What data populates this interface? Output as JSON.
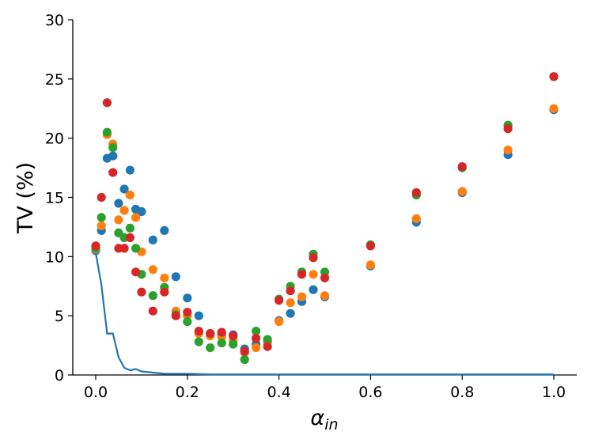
{
  "chart_data": {
    "type": "scatter",
    "title": "",
    "xlabel_main": "α",
    "xlabel_sub": "in",
    "ylabel": "TV (%)",
    "xlim": [
      -0.05,
      1.05
    ],
    "ylim": [
      0,
      30
    ],
    "xticks": [
      0.0,
      0.2,
      0.4,
      0.6,
      0.8,
      1.0
    ],
    "xtick_labels": [
      "0.0",
      "0.2",
      "0.4",
      "0.6",
      "0.8",
      "1.0"
    ],
    "yticks": [
      0,
      5,
      10,
      15,
      20,
      25,
      30
    ],
    "ytick_labels": [
      "0",
      "5",
      "10",
      "15",
      "20",
      "25",
      "30"
    ],
    "grid": false,
    "legend": "none",
    "x": [
      0.0,
      0.0125,
      0.025,
      0.0375,
      0.05,
      0.0625,
      0.075,
      0.0875,
      0.1,
      0.125,
      0.15,
      0.175,
      0.2,
      0.225,
      0.25,
      0.275,
      0.3,
      0.325,
      0.35,
      0.375,
      0.4,
      0.425,
      0.45,
      0.475,
      0.5,
      0.6,
      0.7,
      0.8,
      0.9,
      1.0
    ],
    "series": [
      {
        "color": "#1f77b4",
        "kind": "scatter",
        "values": [
          10.5,
          12.2,
          18.3,
          18.5,
          14.5,
          15.7,
          17.3,
          14.0,
          13.8,
          11.4,
          12.2,
          8.3,
          6.5,
          5.0,
          3.5,
          3.4,
          3.4,
          2.2,
          2.6,
          2.8,
          4.6,
          5.2,
          6.2,
          7.2,
          6.6,
          9.2,
          12.9,
          15.4,
          18.6,
          22.4
        ]
      },
      {
        "color": "#ff7f0e",
        "kind": "scatter",
        "values": [
          10.6,
          12.6,
          20.3,
          19.5,
          13.1,
          13.9,
          15.2,
          13.3,
          10.4,
          8.9,
          8.2,
          5.4,
          5.0,
          3.5,
          3.3,
          3.2,
          2.9,
          1.9,
          2.3,
          2.8,
          4.5,
          6.1,
          6.6,
          8.5,
          6.7,
          9.3,
          13.2,
          15.5,
          19.0,
          22.5
        ]
      },
      {
        "color": "#2ca02c",
        "kind": "scatter",
        "values": [
          10.7,
          13.3,
          20.5,
          19.2,
          12.0,
          11.6,
          12.4,
          10.7,
          8.5,
          6.7,
          7.4,
          5.1,
          4.5,
          2.8,
          2.3,
          2.7,
          2.6,
          1.3,
          3.7,
          3.0,
          6.4,
          7.5,
          8.7,
          10.2,
          8.7,
          11.0,
          15.2,
          17.5,
          21.1,
          25.2
        ]
      },
      {
        "color": "#d62728",
        "kind": "scatter",
        "values": [
          10.9,
          15.0,
          23.0,
          17.1,
          10.7,
          10.7,
          11.6,
          8.7,
          7.0,
          5.4,
          7.0,
          5.0,
          5.3,
          3.7,
          3.5,
          3.6,
          3.3,
          2.0,
          3.1,
          2.4,
          6.3,
          7.1,
          8.5,
          9.9,
          8.2,
          10.9,
          15.4,
          17.6,
          20.8,
          25.2
        ]
      },
      {
        "color": "#1f77b4",
        "kind": "line",
        "x": [
          0.0,
          0.0125,
          0.025,
          0.0375,
          0.05,
          0.0625,
          0.075,
          0.0875,
          0.1,
          0.125,
          0.15,
          0.175,
          0.2,
          0.25,
          0.3,
          0.4,
          0.5,
          0.6,
          0.7,
          0.8,
          0.9,
          1.0
        ],
        "values": [
          10.3,
          7.6,
          3.5,
          3.5,
          1.5,
          0.6,
          0.4,
          0.5,
          0.3,
          0.2,
          0.1,
          0.1,
          0.1,
          0.05,
          0.05,
          0.05,
          0.05,
          0.05,
          0.05,
          0.05,
          0.05,
          0.05
        ]
      }
    ]
  }
}
